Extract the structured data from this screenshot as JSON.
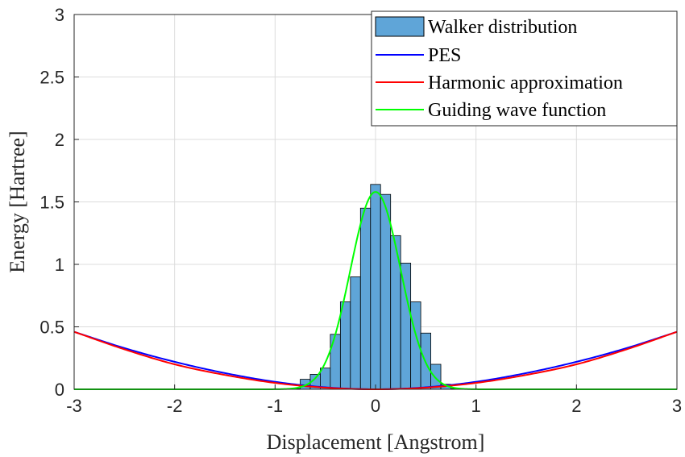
{
  "chart_data": {
    "type": "bar+line",
    "xlabel": "Displacement [Angstrom]",
    "ylabel": "Energy [Hartree]",
    "xlim": [
      -3,
      3
    ],
    "ylim": [
      0,
      3
    ],
    "xticks": [
      "-3",
      "-2",
      "-1",
      "0",
      "1",
      "2",
      "3"
    ],
    "yticks": [
      "0",
      "0.5",
      "1",
      "1.5",
      "2",
      "2.5",
      "3"
    ],
    "grid": true,
    "legend_position": "top-right",
    "histogram": {
      "name": "Walker distribution",
      "color": "#5fa5d8",
      "bin_width": 0.1,
      "bin_centers": [
        -0.8,
        -0.7,
        -0.6,
        -0.5,
        -0.4,
        -0.3,
        -0.2,
        -0.1,
        0.0,
        0.1,
        0.2,
        0.3,
        0.4,
        0.5,
        0.6,
        0.7,
        0.8
      ],
      "values": [
        0.005,
        0.08,
        0.12,
        0.17,
        0.44,
        0.7,
        0.9,
        1.45,
        1.64,
        1.56,
        1.23,
        1.01,
        0.7,
        0.45,
        0.2,
        0.04,
        0.005
      ]
    },
    "series": [
      {
        "name": "PES",
        "color": "#0000ff",
        "x": [
          -3,
          -2.5,
          -2,
          -1.5,
          -1,
          -0.5,
          0,
          0.5,
          1,
          1.5,
          2,
          2.5,
          3
        ],
        "y": [
          0.46,
          0.33,
          0.22,
          0.13,
          0.06,
          0.016,
          0,
          0.016,
          0.06,
          0.13,
          0.22,
          0.33,
          0.46
        ]
      },
      {
        "name": "Harmonic approximation",
        "color": "#ff0000",
        "x": [
          -3,
          -2.5,
          -2,
          -1.5,
          -1,
          -0.5,
          0,
          0.5,
          1,
          1.5,
          2,
          2.5,
          3
        ],
        "y": [
          0.46,
          0.32,
          0.2,
          0.115,
          0.051,
          0.013,
          0,
          0.013,
          0.051,
          0.115,
          0.2,
          0.32,
          0.46
        ]
      },
      {
        "name": "Guiding wave function",
        "color": "#00ff00",
        "type": "gaussian",
        "amplitude": 1.58,
        "sigma": 0.25
      }
    ]
  }
}
